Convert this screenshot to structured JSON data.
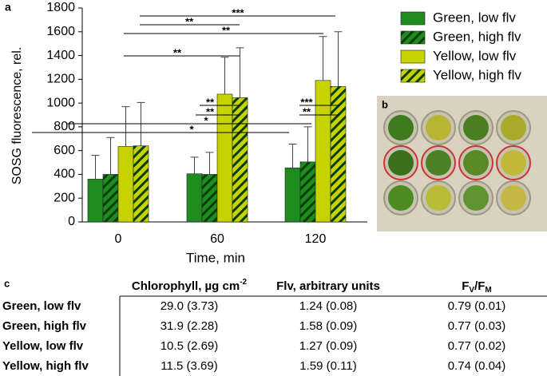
{
  "chart_data": {
    "type": "bar",
    "panel_label": "a",
    "y_label": "SOSG fluorescence, rel.",
    "x_label": "Time, min",
    "categories": [
      "0",
      "60",
      "120"
    ],
    "ylim": [
      0,
      1800
    ],
    "yticks": [
      0,
      200,
      400,
      600,
      800,
      1000,
      1200,
      1400,
      1600,
      1800
    ],
    "series": [
      {
        "name": "Green, low flv",
        "color": "#1e8c1e",
        "hatch": false,
        "values": [
          360,
          405,
          455
        ],
        "errors": [
          200,
          140,
          200
        ]
      },
      {
        "name": "Green, high flv",
        "color": "#1e8c1e",
        "hatch": true,
        "values": [
          400,
          400,
          505
        ],
        "errors": [
          310,
          185,
          295
        ]
      },
      {
        "name": "Yellow, low flv",
        "color": "#c6d300",
        "hatch": false,
        "values": [
          635,
          1075,
          1190
        ],
        "errors": [
          335,
          310,
          370
        ]
      },
      {
        "name": "Yellow, high flv",
        "color": "#c6d300",
        "hatch": true,
        "values": [
          640,
          1045,
          1140
        ],
        "errors": [
          365,
          420,
          460
        ]
      }
    ],
    "annotations": [
      "***",
      "**",
      "**",
      "**",
      "**",
      "**",
      "*",
      "*",
      "***",
      "**"
    ]
  },
  "photo": {
    "panel_label": "b"
  },
  "table": {
    "panel_label": "c",
    "header": {
      "chl": "Chlorophyll, µg cm",
      "chl_sup": "-2",
      "flv": "Flv, arbitrary units",
      "f1": "F",
      "f1_sub": "V",
      "f2": "/F",
      "f2_sub": "M"
    },
    "rows": [
      [
        "Green, low flv",
        "29.0 (3.73)",
        "1.24 (0.08)",
        "0.79 (0.01)"
      ],
      [
        "Green, high flv",
        "31.9 (2.28)",
        "1.58 (0.09)",
        "0.77 (0.03)"
      ],
      [
        "Yellow, low flv",
        "10.5 (2.69)",
        "1.27 (0.09)",
        "0.77 (0.02)"
      ],
      [
        "Yellow, high flv",
        "11.5 (3.69)",
        "1.59 (0.11)",
        "0.74 (0.04)"
      ]
    ]
  }
}
